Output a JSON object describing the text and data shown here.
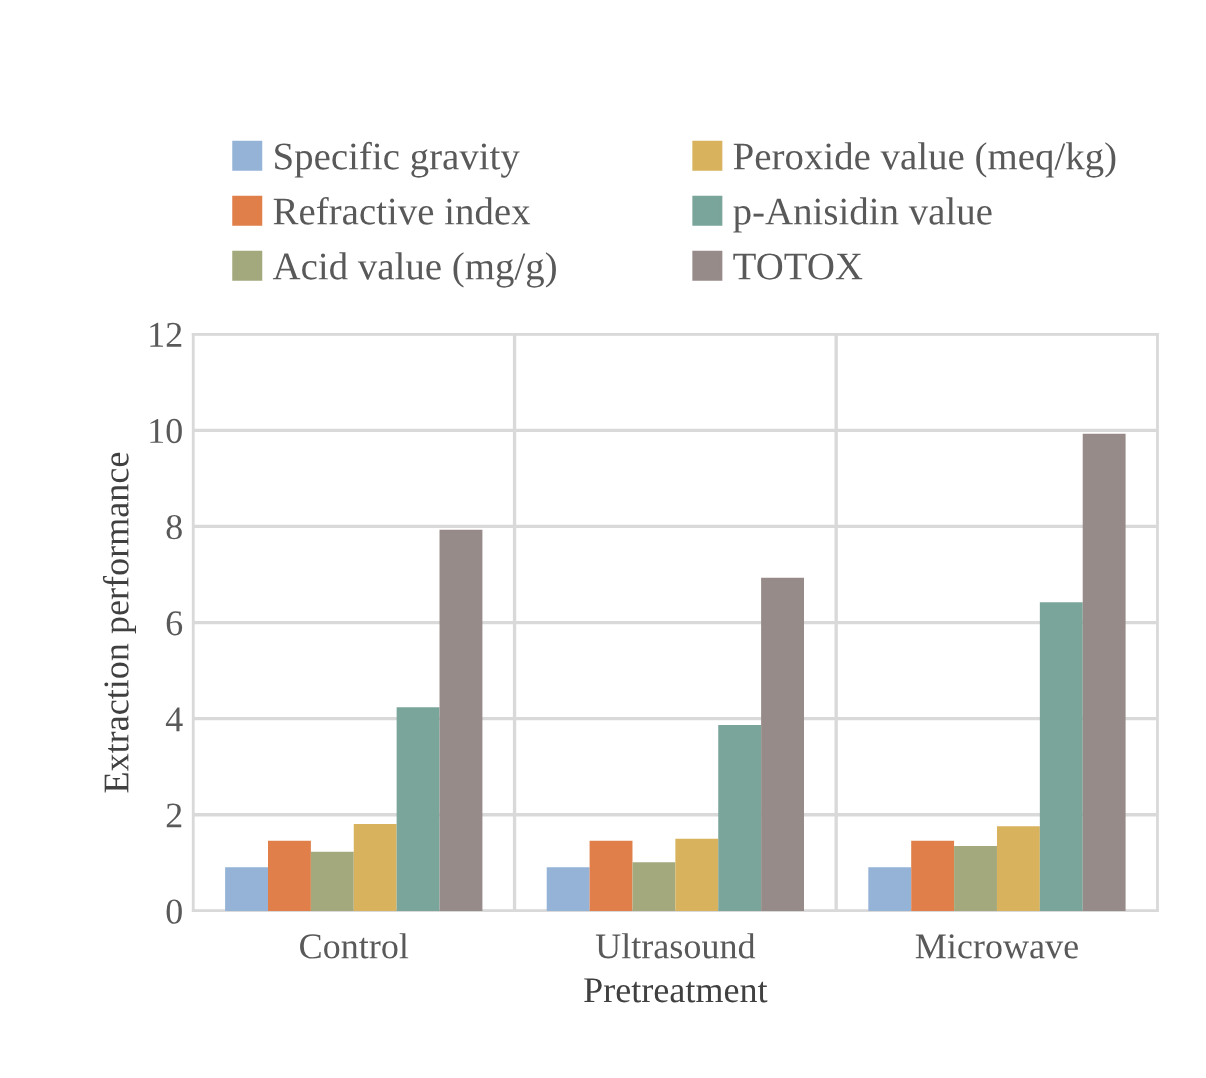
{
  "chart_data": {
    "type": "bar",
    "xlabel": "Pretreatment",
    "ylabel": "Extraction performance",
    "categories": [
      "Control",
      "Ultrasound",
      "Microwave"
    ],
    "series": [
      {
        "name": "Specific gravity",
        "color": "#95b3d7",
        "values": [
          0.91,
          0.91,
          0.91
        ]
      },
      {
        "name": "Refractive index",
        "color": "#e07f49",
        "values": [
          1.46,
          1.46,
          1.46
        ]
      },
      {
        "name": "Acid value (mg/g)",
        "color": "#a3a97d",
        "values": [
          1.23,
          1.01,
          1.35
        ]
      },
      {
        "name": "Peroxide value (meq/kg)",
        "color": "#d8b25d",
        "values": [
          1.81,
          1.5,
          1.76
        ]
      },
      {
        "name": "p-Anisidin value",
        "color": "#7aa59a",
        "values": [
          4.24,
          3.87,
          6.42
        ]
      },
      {
        "name": "TOTOX",
        "color": "#978b89",
        "values": [
          7.93,
          6.93,
          9.93
        ]
      }
    ],
    "ylim": [
      0,
      12
    ],
    "yticks": [
      0,
      2,
      4,
      6,
      8,
      10,
      12
    ],
    "grid": true,
    "legend": "top"
  }
}
